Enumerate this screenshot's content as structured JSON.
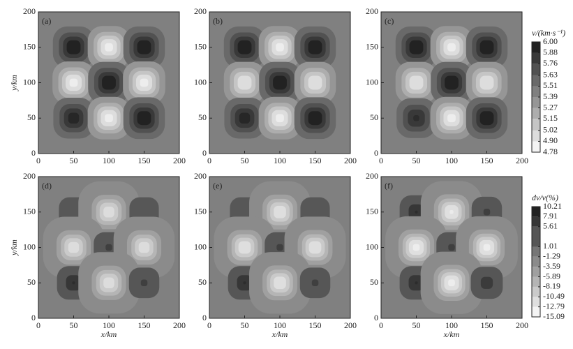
{
  "chart_data": [
    {
      "type": "contour",
      "panel_label": "(a)",
      "colorbar": 0,
      "ylabel": "y/km",
      "xlim": [
        0,
        200
      ],
      "ylim": [
        0,
        200
      ],
      "xticks": [
        0,
        50,
        100,
        150,
        200
      ],
      "yticks": [
        0,
        50,
        100,
        150,
        200
      ],
      "x": [
        50,
        100,
        150
      ],
      "y": [
        150,
        100,
        50
      ],
      "background": 5.45,
      "values": [
        [
          6.0,
          4.85,
          6.0
        ],
        [
          4.85,
          6.0,
          4.85
        ],
        [
          5.95,
          4.85,
          6.0
        ]
      ]
    },
    {
      "type": "contour",
      "panel_label": "(b)",
      "colorbar": 0,
      "xlim": [
        0,
        200
      ],
      "ylim": [
        0,
        200
      ],
      "xticks": [
        0,
        50,
        100,
        150,
        200
      ],
      "yticks": [
        0,
        50,
        100,
        150,
        200
      ],
      "x": [
        50,
        100,
        150
      ],
      "y": [
        150,
        100,
        50
      ],
      "background": 5.45,
      "values": [
        [
          6.0,
          4.85,
          6.0
        ],
        [
          4.9,
          6.0,
          4.9
        ],
        [
          5.95,
          4.85,
          6.0
        ]
      ]
    },
    {
      "type": "contour",
      "panel_label": "(c)",
      "colorbar": 0,
      "xlim": [
        0,
        200
      ],
      "ylim": [
        0,
        200
      ],
      "xticks": [
        0,
        50,
        100,
        150,
        200
      ],
      "yticks": [
        0,
        50,
        100,
        150,
        200
      ],
      "x": [
        50,
        100,
        150
      ],
      "y": [
        150,
        100,
        50
      ],
      "background": 5.45,
      "values": [
        [
          6.0,
          4.85,
          6.0
        ],
        [
          4.9,
          6.0,
          4.9
        ],
        [
          5.9,
          4.85,
          6.0
        ]
      ]
    },
    {
      "type": "contour",
      "panel_label": "(d)",
      "colorbar": 1,
      "xlabel": "x/km",
      "ylabel": "y/km",
      "xlim": [
        0,
        200
      ],
      "ylim": [
        0,
        200
      ],
      "xticks": [
        0,
        50,
        100,
        150,
        200
      ],
      "yticks": [
        0,
        50,
        100,
        150,
        200
      ],
      "x": [
        50,
        100,
        150
      ],
      "y": [
        150,
        100,
        50
      ],
      "background": -1.2,
      "values": [
        [
          5.5,
          -12,
          5.5
        ],
        [
          -12,
          6,
          -12
        ],
        [
          8,
          -12,
          6
        ]
      ]
    },
    {
      "type": "contour",
      "panel_label": "(e)",
      "colorbar": 1,
      "xlabel": "x/km",
      "xlim": [
        0,
        200
      ],
      "ylim": [
        0,
        200
      ],
      "xticks": [
        0,
        50,
        100,
        150,
        200
      ],
      "yticks": [
        0,
        50,
        100,
        150,
        200
      ],
      "x": [
        50,
        100,
        150
      ],
      "y": [
        150,
        100,
        50
      ],
      "background": -1.2,
      "values": [
        [
          5.5,
          -12.5,
          5.5
        ],
        [
          -12.5,
          6,
          -12.5
        ],
        [
          8,
          -12.5,
          6
        ]
      ]
    },
    {
      "type": "contour",
      "panel_label": "(f)",
      "colorbar": 1,
      "xlabel": "x/km",
      "xlim": [
        0,
        200
      ],
      "ylim": [
        0,
        200
      ],
      "xticks": [
        0,
        50,
        100,
        150,
        200
      ],
      "yticks": [
        0,
        50,
        100,
        150,
        200
      ],
      "x": [
        50,
        100,
        150
      ],
      "y": [
        150,
        100,
        50
      ],
      "background": -1.2,
      "values": [
        [
          8,
          -13,
          6
        ],
        [
          -13.5,
          6,
          -13.5
        ],
        [
          8,
          -13.5,
          7
        ]
      ]
    }
  ],
  "colorbars": [
    {
      "title": "v/(km·s⁻¹)",
      "lim": [
        4.78,
        6.0
      ],
      "ticks": [
        {
          "value": 6.0,
          "label": "6.00"
        },
        5.88,
        5.76,
        5.63,
        5.51,
        5.39,
        5.27,
        5.15,
        5.02,
        {
          "value": 4.9,
          "label": "4.90"
        },
        4.78
      ]
    },
    {
      "title": "dv/v(%)",
      "lim": [
        -15.09,
        10.21
      ],
      "ticks": [
        10.21,
        7.91,
        5.61,
        1.01,
        -1.29,
        -3.59,
        -5.89,
        -8.19,
        -10.49,
        -12.79,
        -15.09
      ]
    }
  ]
}
